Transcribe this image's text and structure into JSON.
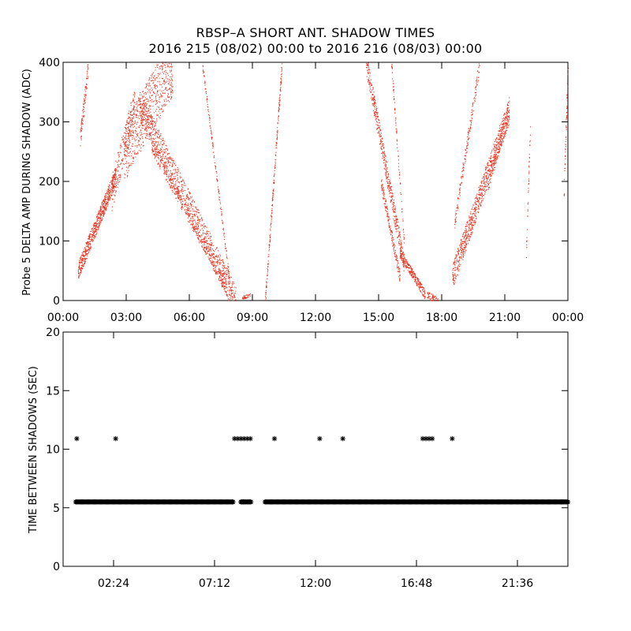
{
  "title": "RBSP–A SHORT ANT. SHADOW TIMES",
  "subtitle": "2016 215 (08/02) 00:00 to 2016 216 (08/03) 00:00",
  "colors": {
    "top_points": "#e8321e",
    "bottom_points": "#000000",
    "axes": "#000000"
  },
  "chart_data": [
    {
      "type": "scatter",
      "ylabel": "Probe 5 DELTA AMP DURING SHADOW (ADC)",
      "xlabel": "",
      "xlim": [
        0,
        24
      ],
      "ylim": [
        0,
        400
      ],
      "x_tick_values": [
        0,
        3,
        6,
        9,
        12,
        15,
        18,
        21,
        24
      ],
      "x_tick_labels": [
        "00:00",
        "03:00",
        "06:00",
        "09:00",
        "12:00",
        "15:00",
        "18:00",
        "21:00",
        "00:00"
      ],
      "y_tick_values": [
        0,
        100,
        200,
        300,
        400
      ],
      "y_tick_labels": [
        "0",
        "100",
        "200",
        "300",
        "400"
      ],
      "marker": "dot",
      "color": "#e8321e",
      "tracks": [
        {
          "x0": 0.7,
          "x1": 2.5,
          "y0": 50,
          "y1": 210,
          "spread": 15,
          "n": 700
        },
        {
          "x0": 2.3,
          "x1": 3.4,
          "y0": 180,
          "y1": 330,
          "spread": 30,
          "n": 220
        },
        {
          "x0": 2.9,
          "x1": 5.2,
          "y0": 250,
          "y1": 395,
          "spread": 50,
          "n": 700
        },
        {
          "x0": 3.6,
          "x1": 8.2,
          "y0": 330,
          "y1": 0,
          "spread": 25,
          "n": 1000
        },
        {
          "x0": 4.2,
          "x1": 7.8,
          "y0": 260,
          "y1": 20,
          "spread": 12,
          "n": 400
        },
        {
          "x0": 0.8,
          "x1": 1.2,
          "y0": 270,
          "y1": 400,
          "spread": 15,
          "n": 100
        },
        {
          "x0": 6.6,
          "x1": 8.0,
          "y0": 400,
          "y1": 10,
          "spread": 6,
          "n": 160
        },
        {
          "x0": 8.5,
          "x1": 8.9,
          "y0": 5,
          "y1": 10,
          "spread": 3,
          "n": 40
        },
        {
          "x0": 9.6,
          "x1": 10.4,
          "y0": 0,
          "y1": 400,
          "spread": 10,
          "n": 220
        },
        {
          "x0": 14.4,
          "x1": 16.2,
          "y0": 400,
          "y1": 60,
          "spread": 18,
          "n": 500
        },
        {
          "x0": 15.1,
          "x1": 16.0,
          "y0": 200,
          "y1": 40,
          "spread": 10,
          "n": 180
        },
        {
          "x0": 15.6,
          "x1": 16.2,
          "y0": 400,
          "y1": 100,
          "spread": 8,
          "n": 90
        },
        {
          "x0": 16.0,
          "x1": 17.2,
          "y0": 80,
          "y1": 10,
          "spread": 8,
          "n": 260
        },
        {
          "x0": 17.3,
          "x1": 17.8,
          "y0": 10,
          "y1": 0,
          "spread": 6,
          "n": 70
        },
        {
          "x0": 18.5,
          "x1": 21.2,
          "y0": 40,
          "y1": 320,
          "spread": 22,
          "n": 800
        },
        {
          "x0": 18.6,
          "x1": 19.8,
          "y0": 130,
          "y1": 400,
          "spread": 12,
          "n": 180
        },
        {
          "x0": 20.2,
          "x1": 21.2,
          "y0": 200,
          "y1": 320,
          "spread": 15,
          "n": 160
        },
        {
          "x0": 22.0,
          "x1": 22.2,
          "y0": 70,
          "y1": 290,
          "spread": 8,
          "n": 40
        },
        {
          "x0": 23.8,
          "x1": 24.0,
          "y0": 180,
          "y1": 400,
          "spread": 15,
          "n": 60
        }
      ]
    },
    {
      "type": "scatter",
      "ylabel": "TIME BETWEEN SHADOWS (SEC)",
      "xlabel": "",
      "xlim": [
        0,
        24
      ],
      "ylim": [
        0,
        20
      ],
      "x_tick_values": [
        2.4,
        7.2,
        12.0,
        16.8,
        21.6
      ],
      "x_tick_labels": [
        "02:24",
        "07:12",
        "12:00",
        "16:48",
        "21:36"
      ],
      "y_tick_values": [
        0,
        5,
        10,
        15,
        20
      ],
      "y_tick_labels": [
        "0",
        "5",
        "10",
        "15",
        "20"
      ],
      "marker": "asterisk",
      "color": "#000000",
      "baseline_value": 5.5,
      "baseline_segments": [
        [
          0.6,
          8.1
        ],
        [
          8.45,
          8.95
        ],
        [
          9.6,
          24.0
        ]
      ],
      "outlier_value": 10.9,
      "outlier_x": [
        0.65,
        2.5,
        8.15,
        8.3,
        8.45,
        8.6,
        8.75,
        8.9,
        10.05,
        12.2,
        13.3,
        17.1,
        17.25,
        17.4,
        17.55,
        18.5
      ]
    }
  ]
}
